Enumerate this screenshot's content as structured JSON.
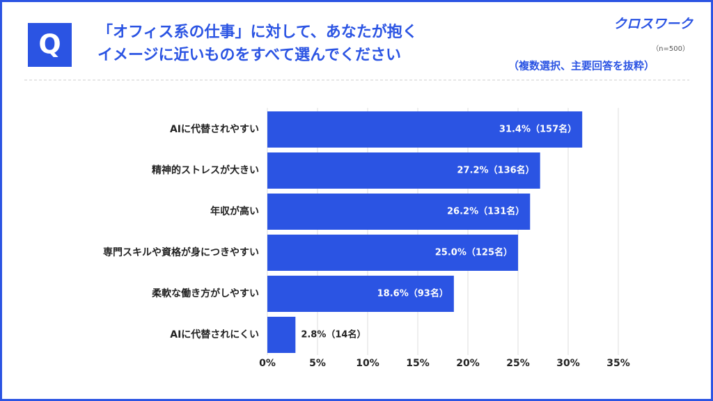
{
  "chart_data": {
    "type": "bar",
    "orientation": "horizontal",
    "badge": "Q",
    "title": [
      "「オフィス系の仕事」に対して、あなたが抱く",
      "イメージに近いものをすべて選んでください"
    ],
    "brand": "クロスワーク",
    "note": "（n=500）",
    "subtitle": "（複数選択、主要回答を抜粋）",
    "categories": [
      "AIに代替されやすい",
      "精神的ストレスが大きい",
      "年収が高い",
      "専門スキルや資格が身につきやすい",
      "柔軟な働き方がしやすい",
      "AIに代替されにくい"
    ],
    "values": [
      31.4,
      27.2,
      26.2,
      25.0,
      18.6,
      2.8
    ],
    "value_labels": [
      "31.4%（157名）",
      "27.2%（136名）",
      "26.2%（131名）",
      "25.0%（125名）",
      "18.6%（93名）",
      "2.8%（14名）"
    ],
    "color": "#2b54e3",
    "xlim": [
      0,
      35
    ],
    "xticks": [
      {
        "value": 0,
        "label": "0%"
      },
      {
        "value": 5,
        "label": "5%"
      },
      {
        "value": 10,
        "label": "10%"
      },
      {
        "value": 15,
        "label": "15%"
      },
      {
        "value": 20,
        "label": "20%"
      },
      {
        "value": 25,
        "label": "25%"
      },
      {
        "value": 30,
        "label": "30%"
      },
      {
        "value": 35,
        "label": "35%"
      }
    ],
    "grid": true
  }
}
